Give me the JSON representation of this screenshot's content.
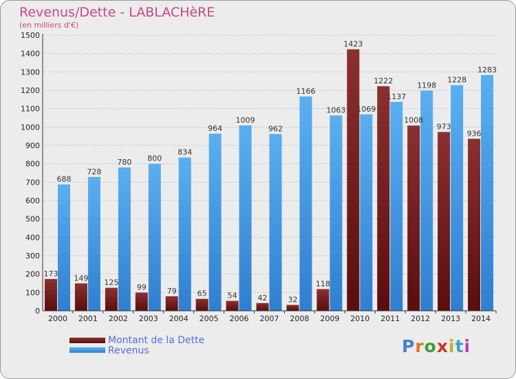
{
  "title": "Revenus/Dette - LABLACHèRE",
  "subtitle": "(en milliers d'€)",
  "brand": "Proxiti",
  "colors": {
    "background": "#ececec",
    "title": "#c8497c",
    "debt_top": "#8a3030",
    "debt_bottom": "#5a0d0d",
    "revenue_top": "#5aaff0",
    "revenue_bottom": "#2f7fcf",
    "legend_text": "#5a6ce0"
  },
  "chart_data": {
    "type": "bar",
    "categories": [
      "2000",
      "2001",
      "2002",
      "2003",
      "2004",
      "2005",
      "2006",
      "2007",
      "2008",
      "2009",
      "2010",
      "2011",
      "2012",
      "2013",
      "2014"
    ],
    "series": [
      {
        "name": "Montant de la Dette",
        "values": [
          173,
          149,
          125,
          99,
          79,
          65,
          54,
          42,
          32,
          118,
          1423,
          1222,
          1008,
          973,
          936
        ]
      },
      {
        "name": "Revenus",
        "values": [
          688,
          728,
          780,
          800,
          834,
          964,
          1009,
          962,
          1166,
          1063,
          1069,
          1137,
          1198,
          1228,
          1283
        ]
      }
    ],
    "y_ticks": [
      0,
      100,
      200,
      300,
      400,
      500,
      600,
      700,
      800,
      900,
      1000,
      1100,
      1200,
      1300,
      1400,
      1500
    ],
    "ylim": [
      0,
      1500
    ],
    "grid": true,
    "legend_position": "bottom-left"
  }
}
